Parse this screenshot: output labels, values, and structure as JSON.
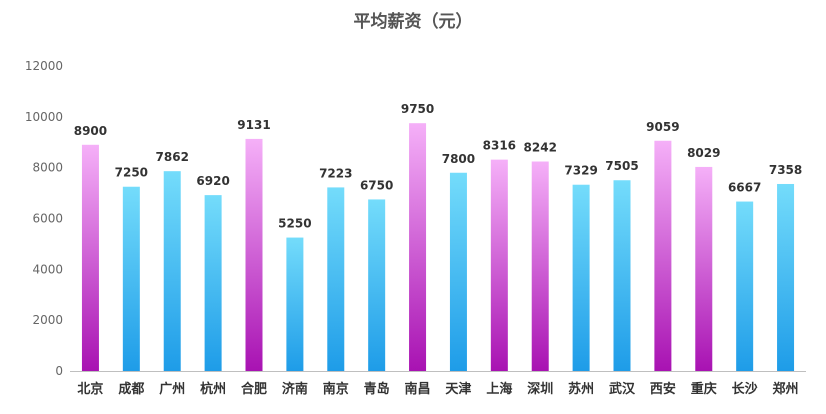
{
  "chart_data": {
    "type": "bar",
    "title": "平均薪资（元）",
    "xlabel": "",
    "ylabel": "",
    "ylim": [
      0,
      12000
    ],
    "yticks": [
      0,
      2000,
      4000,
      6000,
      8000,
      10000,
      12000
    ],
    "grid": false,
    "legend": "none",
    "categories": [
      "北京",
      "成都",
      "广州",
      "杭州",
      "合肥",
      "济南",
      "南京",
      "青岛",
      "南昌",
      "天津",
      "上海",
      "深圳",
      "苏州",
      "武汉",
      "西安",
      "重庆",
      "长沙",
      "郑州"
    ],
    "values": [
      8900,
      7250,
      7862,
      6920,
      9131,
      5250,
      7223,
      6750,
      9750,
      7800,
      8316,
      8242,
      7329,
      7505,
      9059,
      8029,
      6667,
      7358
    ],
    "highlighted_categories": [
      "北京",
      "合肥",
      "南昌",
      "上海",
      "深圳",
      "西安",
      "重庆"
    ],
    "colors": {
      "normal_top": "#74dcfb",
      "normal_bottom": "#1e9ce8",
      "highlight_top": "#f5b0f8",
      "highlight_bottom": "#a812b2",
      "axis": "#bfbfbf"
    }
  }
}
